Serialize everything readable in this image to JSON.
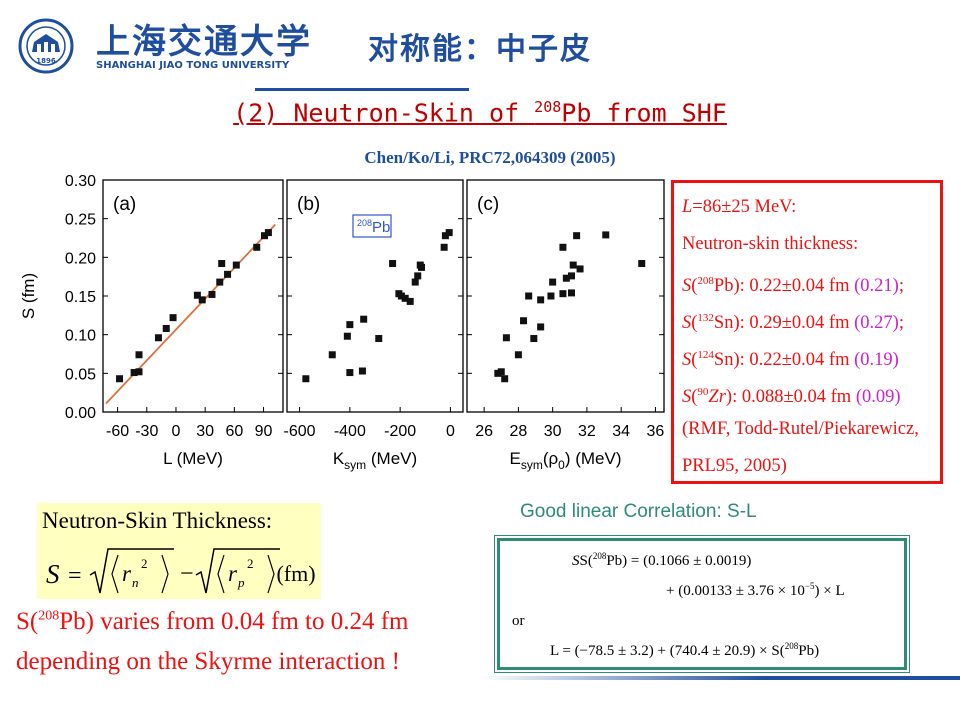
{
  "header": {
    "title": "对称能：中子皮",
    "logo_cn": "上海交通大学",
    "logo_en": "SHANGHAI JIAO TONG UNIVERSITY",
    "logo_year": "1896"
  },
  "subtitle": {
    "prefix": "(2) Neutron-Skin of ",
    "mass": "208",
    "suffix": "Pb from SHF"
  },
  "citation": "Chen/Ko/Li, PRC72,064309 (2005)",
  "figure": {
    "ylabel": "S (fm)",
    "yticks": [
      "0.30",
      "0.25",
      "0.20",
      "0.15",
      "0.10",
      "0.05",
      "0.00"
    ],
    "panels": [
      {
        "tag": "(a)",
        "xlabel": "L (MeV)",
        "xticks": [
          "-60",
          "-30",
          "0",
          "30",
          "60",
          "90"
        ]
      },
      {
        "tag": "(b)",
        "xlabel_main": "K",
        "xlabel_sub": "sym",
        "xlabel_rest": " (MeV)",
        "xticks": [
          "-600",
          "-400",
          "-200",
          "0"
        ],
        "badge_mass": "208",
        "badge_el": "Pb"
      },
      {
        "tag": "(c)",
        "xlabel_main": "E",
        "xlabel_sub": "sym",
        "xlabel_rest": "(ρ",
        "xlabel_sub2": "0",
        "xlabel_end": ") (MeV)",
        "xticks": [
          "26",
          "28",
          "30",
          "32",
          "34",
          "36"
        ]
      }
    ]
  },
  "chart_data": [
    {
      "type": "scatter",
      "panel": "(a)",
      "xlabel": "L (MeV)",
      "ylabel": "S (fm)",
      "xlim": [
        -75,
        110
      ],
      "ylim": [
        0,
        0.3
      ],
      "points": [
        [
          -58,
          0.043
        ],
        [
          -43,
          0.051
        ],
        [
          -38,
          0.052
        ],
        [
          -38,
          0.074
        ],
        [
          -18,
          0.096
        ],
        [
          -10,
          0.108
        ],
        [
          -3,
          0.122
        ],
        [
          22,
          0.151
        ],
        [
          27,
          0.145
        ],
        [
          37,
          0.152
        ],
        [
          45,
          0.168
        ],
        [
          47,
          0.192
        ],
        [
          53,
          0.178
        ],
        [
          62,
          0.19
        ],
        [
          83,
          0.213
        ],
        [
          91,
          0.228
        ],
        [
          95,
          0.232
        ]
      ],
      "fit_line": {
        "intercept": 0.1066,
        "slope": 0.00133
      }
    },
    {
      "type": "scatter",
      "panel": "(b)",
      "xlabel": "Ksym (MeV)",
      "ylabel": "S (fm)",
      "xlim": [
        -650,
        50
      ],
      "ylim": [
        0,
        0.3
      ],
      "points": [
        [
          -575,
          0.043
        ],
        [
          -470,
          0.074
        ],
        [
          -410,
          0.098
        ],
        [
          -400,
          0.113
        ],
        [
          -400,
          0.051
        ],
        [
          -350,
          0.053
        ],
        [
          -345,
          0.12
        ],
        [
          -285,
          0.095
        ],
        [
          -230,
          0.192
        ],
        [
          -205,
          0.153
        ],
        [
          -195,
          0.15
        ],
        [
          -180,
          0.147
        ],
        [
          -160,
          0.143
        ],
        [
          -140,
          0.168
        ],
        [
          -130,
          0.176
        ],
        [
          -120,
          0.19
        ],
        [
          -115,
          0.187
        ],
        [
          -25,
          0.213
        ],
        [
          -20,
          0.228
        ],
        [
          -5,
          0.232
        ]
      ]
    },
    {
      "type": "scatter",
      "panel": "(c)",
      "xlabel": "Esym(ρ0) (MeV)",
      "ylabel": "S (fm)",
      "xlim": [
        25,
        36.5
      ],
      "ylim": [
        0,
        0.3
      ],
      "points": [
        [
          26.8,
          0.05
        ],
        [
          27.0,
          0.052
        ],
        [
          27.2,
          0.043
        ],
        [
          27.3,
          0.096
        ],
        [
          28.0,
          0.074
        ],
        [
          28.3,
          0.118
        ],
        [
          28.6,
          0.15
        ],
        [
          28.9,
          0.095
        ],
        [
          29.3,
          0.11
        ],
        [
          29.3,
          0.145
        ],
        [
          29.9,
          0.15
        ],
        [
          30.0,
          0.168
        ],
        [
          30.6,
          0.153
        ],
        [
          30.6,
          0.213
        ],
        [
          30.8,
          0.173
        ],
        [
          31.1,
          0.154
        ],
        [
          31.1,
          0.176
        ],
        [
          31.2,
          0.19
        ],
        [
          31.4,
          0.228
        ],
        [
          31.6,
          0.185
        ],
        [
          33.1,
          0.229
        ],
        [
          35.2,
          0.192
        ]
      ]
    }
  ],
  "result_box": {
    "L_lhs": "L",
    "L_rhs": "=86±25 MeV:",
    "thickness_label": "Neutron-skin thickness:",
    "rows": [
      {
        "mass": "208",
        "el": "Pb",
        "value": "): 0.22±0.04 fm ",
        "mag": "(0.21)",
        "end": ";"
      },
      {
        "mass": "132",
        "el": "Sn",
        "value": "): 0.29±0.04 fm ",
        "mag": "(0.27)",
        "end": ";"
      },
      {
        "mass": "124",
        "el": "Sn",
        "value": "): 0.22±0.04 fm ",
        "mag": "(0.19)",
        "end": ""
      },
      {
        "mass": "90",
        "el": "Zr",
        "value": "): 0.088±0.04 fm ",
        "mag": "(0.09)",
        "end": ""
      }
    ],
    "ref1": "(RMF, Todd-Rutel/Piekarewicz,",
    "ref2": "PRL95, 2005)"
  },
  "correlation_label": "Good linear Correlation: S-L",
  "formula": {
    "title": "Neutron-Skin Thickness:",
    "unit": "(fm)"
  },
  "variation": {
    "line1_pre": "S(",
    "line1_mass": "208",
    "line1_post": "Pb) varies from 0.04 fm to 0.24 fm",
    "line2": "depending on the Skyrme interaction !"
  },
  "equations": {
    "eq1_lhs_pre": "S(",
    "eq1_mass": "208",
    "eq1_lhs_post": "Pb) = (0.1066 ± 0.0019)",
    "eq1_cont": "+ (0.00133 ± 3.76 × 10",
    "eq1_exp": "−5",
    "eq1_end": ") × L",
    "or": "or",
    "eq2": "L = (−78.5 ± 3.2) + (740.4 ± 20.9) × S(",
    "eq2_mass": "208",
    "eq2_end": "Pb)"
  },
  "colors": {
    "accent_blue": "#1f4e9e",
    "red": "#ee1111",
    "magenta": "#cc22cc",
    "teal": "#2e8b7a",
    "fit_line": "#e0703a"
  }
}
